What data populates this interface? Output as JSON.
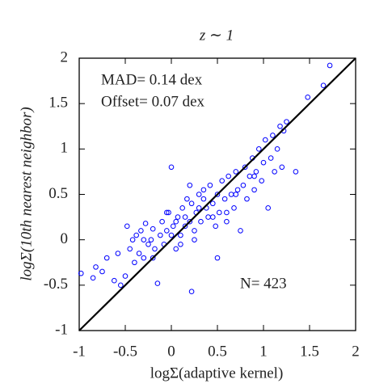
{
  "chart_data": {
    "type": "scatter",
    "title": "z ∼ 1",
    "xlabel": "logΣ(adaptive kernel)",
    "ylabel": "logΣ(10th nearest neighbor)",
    "annotations": [
      "MAD= 0.14 dex",
      "Offset= 0.07 dex",
      "N= 423"
    ],
    "xlim": [
      -1,
      2
    ],
    "ylim": [
      -1,
      2
    ],
    "xticks": [
      -1,
      -0.5,
      0,
      0.5,
      1,
      1.5,
      2
    ],
    "yticks": [
      -1,
      -0.5,
      0,
      0.5,
      1,
      1.5,
      2
    ],
    "identity_line": true,
    "grid": false,
    "color": "#0000ff",
    "x": [
      -0.98,
      -0.85,
      -0.82,
      -0.75,
      -0.7,
      -0.62,
      -0.58,
      -0.55,
      -0.5,
      -0.48,
      -0.45,
      -0.42,
      -0.4,
      -0.38,
      -0.35,
      -0.33,
      -0.3,
      -0.28,
      -0.25,
      -0.22,
      -0.2,
      -0.18,
      -0.15,
      -0.12,
      -0.1,
      -0.08,
      -0.05,
      -0.03,
      0.0,
      0.02,
      0.05,
      0.07,
      0.1,
      0.12,
      0.15,
      0.17,
      0.2,
      0.22,
      0.22,
      0.25,
      0.27,
      0.3,
      0.32,
      0.35,
      0.38,
      0.4,
      0.42,
      0.45,
      0.48,
      0.5,
      0.52,
      0.55,
      0.58,
      0.6,
      0.62,
      0.65,
      0.68,
      0.7,
      0.72,
      0.75,
      0.78,
      0.8,
      0.82,
      0.85,
      0.88,
      0.9,
      0.92,
      0.95,
      0.98,
      1.0,
      1.02,
      1.05,
      1.08,
      1.1,
      1.12,
      1.15,
      1.18,
      1.2,
      1.22,
      1.25,
      1.35,
      1.48,
      1.65,
      1.72,
      0.0,
      0.25,
      0.1,
      -0.3,
      0.45,
      0.6,
      0.3,
      0.15,
      -0.05,
      0.7,
      0.9,
      0.5,
      0.35,
      -0.2,
      0.05,
      0.2
    ],
    "y": [
      -0.37,
      -0.42,
      -0.3,
      -0.35,
      -0.2,
      -0.45,
      -0.15,
      -0.5,
      -0.4,
      0.15,
      -0.1,
      0.0,
      -0.25,
      0.05,
      -0.15,
      0.1,
      -0.2,
      0.18,
      -0.05,
      0.0,
      0.12,
      -0.1,
      -0.48,
      0.05,
      0.2,
      -0.05,
      0.1,
      0.3,
      0.8,
      0.15,
      -0.1,
      0.25,
      0.05,
      0.35,
      0.15,
      0.45,
      0.2,
      -0.57,
      0.4,
      0.1,
      0.3,
      0.5,
      0.2,
      0.55,
      0.35,
      0.25,
      0.6,
      0.4,
      0.15,
      0.5,
      0.3,
      0.65,
      0.45,
      0.2,
      0.7,
      0.5,
      0.35,
      0.75,
      0.55,
      0.1,
      0.6,
      0.8,
      0.45,
      0.7,
      0.9,
      0.55,
      0.75,
      1.0,
      0.65,
      0.85,
      1.1,
      0.35,
      0.9,
      1.15,
      0.75,
      1.0,
      1.25,
      0.8,
      1.2,
      1.3,
      0.75,
      1.57,
      1.7,
      1.92,
      0.05,
      0.0,
      -0.05,
      0.0,
      0.25,
      0.3,
      0.35,
      0.25,
      0.3,
      0.5,
      0.7,
      -0.2,
      0.45,
      -0.2,
      0.2,
      0.6
    ]
  }
}
